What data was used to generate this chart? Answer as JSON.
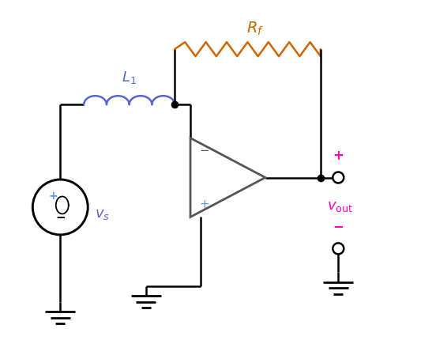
{
  "background_color": "#ffffff",
  "line_color": "#000000",
  "line_width": 1.8,
  "Rf_color": "#cc6600",
  "L1_color": "#5566cc",
  "vs_color": "#5566cc",
  "vout_color": "#ff00bb",
  "opamp_color": "#555555",
  "plus_color_blue": "#5599ff",
  "minus_color_pink": "#ff00bb",
  "fig_width": 5.52,
  "fig_height": 4.54,
  "dpi": 100
}
